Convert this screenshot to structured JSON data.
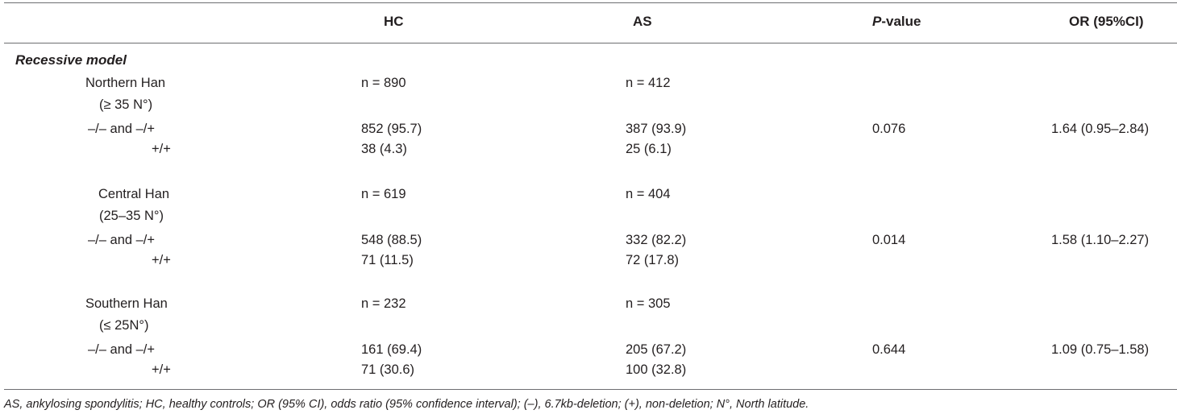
{
  "header": {
    "hc": "HC",
    "as": "AS",
    "p_italic": "P",
    "p_rest": "-value",
    "or": "OR (95%CI)"
  },
  "model_title": "Recessive model",
  "groups": [
    {
      "name": "Northern Han",
      "lat": "(≥ 35 N°)",
      "hc_n": "n = 890",
      "as_n": "n = 412",
      "genotype1": "–/– and –/+",
      "genotype2": "+/+",
      "hc_g1": "852 (95.7)",
      "hc_g2": "38 (4.3)",
      "as_g1": "387 (93.9)",
      "as_g2": "25 (6.1)",
      "p": "0.076",
      "or": "1.64 (0.95–2.84)"
    },
    {
      "name": "Central Han",
      "lat": "(25–35 N°)",
      "hc_n": "n = 619",
      "as_n": "n = 404",
      "genotype1": "–/– and –/+",
      "genotype2": "+/+",
      "hc_g1": "548 (88.5)",
      "hc_g2": "71 (11.5)",
      "as_g1": "332 (82.2)",
      "as_g2": "72 (17.8)",
      "p": "0.014",
      "or": "1.58 (1.10–2.27)"
    },
    {
      "name": "Southern Han",
      "lat": "(≤ 25N°)",
      "hc_n": "n = 232",
      "as_n": "n = 305",
      "genotype1": "–/– and –/+",
      "genotype2": "+/+",
      "hc_g1": "161 (69.4)",
      "hc_g2": "71 (30.6)",
      "as_g1": "205 (67.2)",
      "as_g2": "100 (32.8)",
      "p": "0.644",
      "or": "1.09 (0.75–1.58)"
    }
  ],
  "footnote": "AS, ankylosing spondylitis; HC, healthy controls; OR (95% CI), odds ratio (95% confidence interval); (–), 6.7kb-deletion; (+), non-deletion; N°, North latitude."
}
